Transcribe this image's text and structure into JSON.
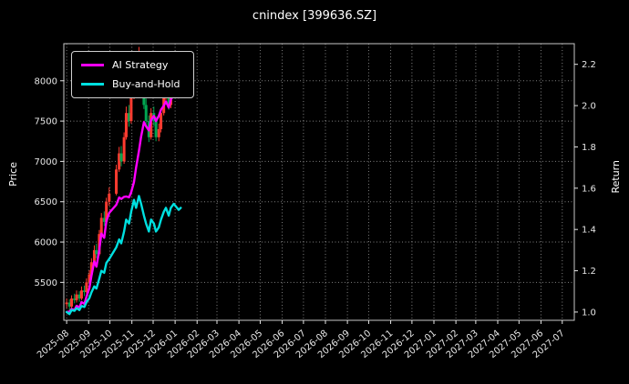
{
  "title": "cnindex [399636.SZ]",
  "axes": {
    "left_label": "Price",
    "right_label": "Return"
  },
  "legend": [
    {
      "label": "AI Strategy",
      "color": "#ff00ff"
    },
    {
      "label": "Buy-and-Hold",
      "color": "#00e0e0"
    }
  ],
  "chart_data": {
    "type": "candlestick+line",
    "title": "cnindex [399636.SZ]",
    "xlabel": "",
    "ylabel_left": "Price",
    "ylabel_right": "Return",
    "grid": true,
    "legend_position": "upper left",
    "background_color": "#000000",
    "x_range": [
      "2025-07-28",
      "2027-07-18"
    ],
    "x_tick_labels": [
      "2025-08",
      "2025-09",
      "2025-10",
      "2025-11",
      "2025-12",
      "2026-01",
      "2026-02",
      "2026-03",
      "2026-04",
      "2026-05",
      "2026-06",
      "2026-07",
      "2026-08",
      "2026-09",
      "2026-10",
      "2026-11",
      "2026-12",
      "2027-01",
      "2027-02",
      "2027-03",
      "2027-04",
      "2027-05",
      "2027-06",
      "2027-07"
    ],
    "price_axis": {
      "label": "Price",
      "ticks": [
        5500,
        6000,
        6500,
        7000,
        7500,
        8000
      ],
      "range": [
        5030,
        8460
      ]
    },
    "return_axis": {
      "label": "Return",
      "ticks": [
        "1.0",
        "1.2",
        "1.4",
        "1.6",
        "1.8",
        "2.0",
        "2.2"
      ],
      "range": [
        0.96,
        2.3
      ]
    },
    "dates": [
      "2025-08-01",
      "2025-08-05",
      "2025-08-08",
      "2025-08-12",
      "2025-08-15",
      "2025-08-19",
      "2025-08-22",
      "2025-08-26",
      "2025-08-29",
      "2025-09-02",
      "2025-09-05",
      "2025-09-09",
      "2025-09-12",
      "2025-09-16",
      "2025-09-19",
      "2025-09-23",
      "2025-09-26",
      "2025-09-30",
      "2025-10-10",
      "2025-10-14",
      "2025-10-17",
      "2025-10-21",
      "2025-10-24",
      "2025-10-28",
      "2025-10-31",
      "2025-11-04",
      "2025-11-07",
      "2025-11-11",
      "2025-11-14",
      "2025-11-18",
      "2025-11-21",
      "2025-11-25",
      "2025-11-28",
      "2025-12-02",
      "2025-12-05",
      "2025-12-09",
      "2025-12-12",
      "2025-12-16",
      "2025-12-19",
      "2025-12-23",
      "2025-12-26",
      "2025-12-30",
      "2026-01-06",
      "2026-01-09"
    ],
    "candles": {
      "up_color": "#ff3b30",
      "down_color": "#00a651",
      "open": [
        5230,
        5250,
        5200,
        5300,
        5280,
        5350,
        5300,
        5400,
        5380,
        5500,
        5600,
        5750,
        5900,
        5850,
        6100,
        6300,
        6250,
        6500,
        6600,
        6900,
        7100,
        7000,
        7300,
        7600,
        7500,
        7800,
        8100,
        7900,
        8200,
        8000,
        7700,
        7500,
        7300,
        7600,
        7500,
        7300,
        7400,
        7600,
        7800,
        7900,
        7700,
        7900,
        8000,
        7850
      ],
      "high": [
        5300,
        5290,
        5340,
        5360,
        5400,
        5390,
        5450,
        5460,
        5550,
        5650,
        5800,
        5960,
        5980,
        6150,
        6360,
        6380,
        6550,
        6680,
        6960,
        7180,
        7190,
        7360,
        7680,
        7700,
        7880,
        8350,
        8180,
        8420,
        8280,
        8080,
        7780,
        7570,
        7660,
        7680,
        7560,
        7470,
        7660,
        7870,
        7980,
        7960,
        7960,
        8080,
        8060,
        7980
      ],
      "low": [
        5180,
        5150,
        5180,
        5240,
        5250,
        5260,
        5280,
        5330,
        5360,
        5470,
        5580,
        5720,
        5800,
        5830,
        6080,
        6200,
        6230,
        6450,
        6580,
        6870,
        6940,
        6970,
        7270,
        7430,
        7470,
        7770,
        7830,
        7870,
        7930,
        7650,
        7430,
        7240,
        7270,
        7440,
        7250,
        7250,
        7360,
        7570,
        7760,
        7640,
        7660,
        7860,
        7790,
        7810
      ],
      "close": [
        5250,
        5200,
        5300,
        5280,
        5350,
        5300,
        5400,
        5380,
        5500,
        5600,
        5750,
        5900,
        5850,
        6100,
        6300,
        6250,
        6500,
        6600,
        6900,
        7100,
        7000,
        7300,
        7600,
        7500,
        7800,
        8100,
        7900,
        8200,
        8000,
        7700,
        7500,
        7300,
        7600,
        7500,
        7300,
        7400,
        7600,
        7800,
        7900,
        7700,
        7900,
        8000,
        7850,
        7900
      ]
    },
    "series": [
      {
        "name": "AI Strategy",
        "axis": "return",
        "color": "#ff00ff",
        "values": [
          1.0,
          1.002,
          1.015,
          1.01,
          1.03,
          1.022,
          1.048,
          1.04,
          1.075,
          1.115,
          1.175,
          1.245,
          1.22,
          1.3,
          1.38,
          1.36,
          1.44,
          1.48,
          1.52,
          1.555,
          1.548,
          1.558,
          1.56,
          1.556,
          1.58,
          1.63,
          1.7,
          1.78,
          1.85,
          1.92,
          1.9,
          1.88,
          1.93,
          1.95,
          1.925,
          1.95,
          1.98,
          2.0,
          2.02,
          1.99,
          2.03,
          2.05,
          2.04,
          2.06
        ]
      },
      {
        "name": "Buy-and-Hold",
        "axis": "return",
        "color": "#00e0e0",
        "values": [
          1.0,
          0.99,
          1.01,
          1.006,
          1.019,
          1.01,
          1.029,
          1.025,
          1.048,
          1.067,
          1.095,
          1.124,
          1.114,
          1.162,
          1.2,
          1.19,
          1.238,
          1.257,
          1.314,
          1.352,
          1.333,
          1.39,
          1.448,
          1.429,
          1.486,
          1.543,
          1.505,
          1.562,
          1.524,
          1.467,
          1.429,
          1.39,
          1.448,
          1.429,
          1.39,
          1.41,
          1.448,
          1.486,
          1.505,
          1.467,
          1.505,
          1.524,
          1.495,
          1.505
        ]
      }
    ]
  }
}
